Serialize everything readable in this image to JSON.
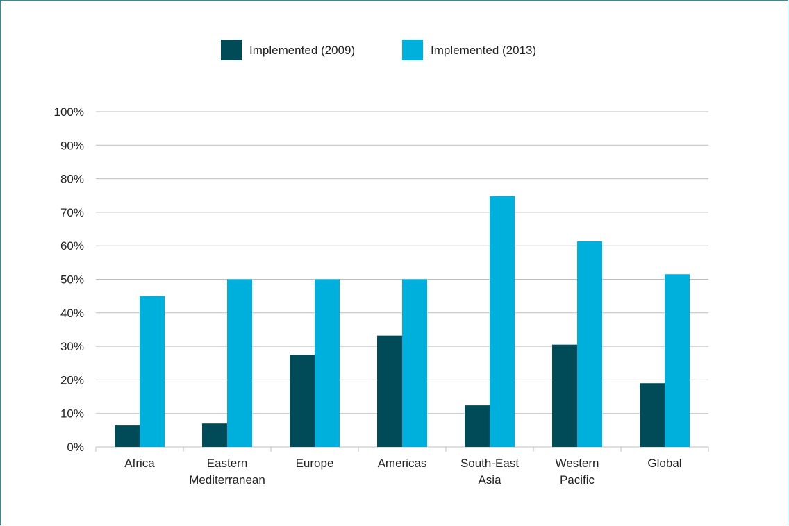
{
  "chart_data": {
    "type": "bar",
    "categories": [
      [
        "Africa"
      ],
      [
        "Eastern",
        "Mediterranean"
      ],
      [
        "Europe"
      ],
      [
        "Americas"
      ],
      [
        "South-East",
        "Asia"
      ],
      [
        "Western",
        "Pacific"
      ],
      [
        "Global"
      ]
    ],
    "series": [
      {
        "name": "Implemented (2009)",
        "color": "#004b57",
        "values": [
          6.4,
          7.0,
          27.5,
          33.2,
          12.4,
          30.5,
          19.0
        ]
      },
      {
        "name": "Implemented (2013)",
        "color": "#00b0dc",
        "values": [
          45.0,
          50.0,
          50.0,
          50.0,
          74.8,
          61.3,
          51.5
        ]
      }
    ],
    "y_ticks": [
      "0%",
      "10%",
      "20%",
      "30%",
      "40%",
      "50%",
      "60%",
      "70%",
      "80%",
      "90%",
      "100%"
    ],
    "ylim": [
      0,
      100
    ],
    "grid": true,
    "legend_position": "top-center",
    "gridline_color": "#bfbfbf",
    "frame_color": "#2b8c9c"
  }
}
